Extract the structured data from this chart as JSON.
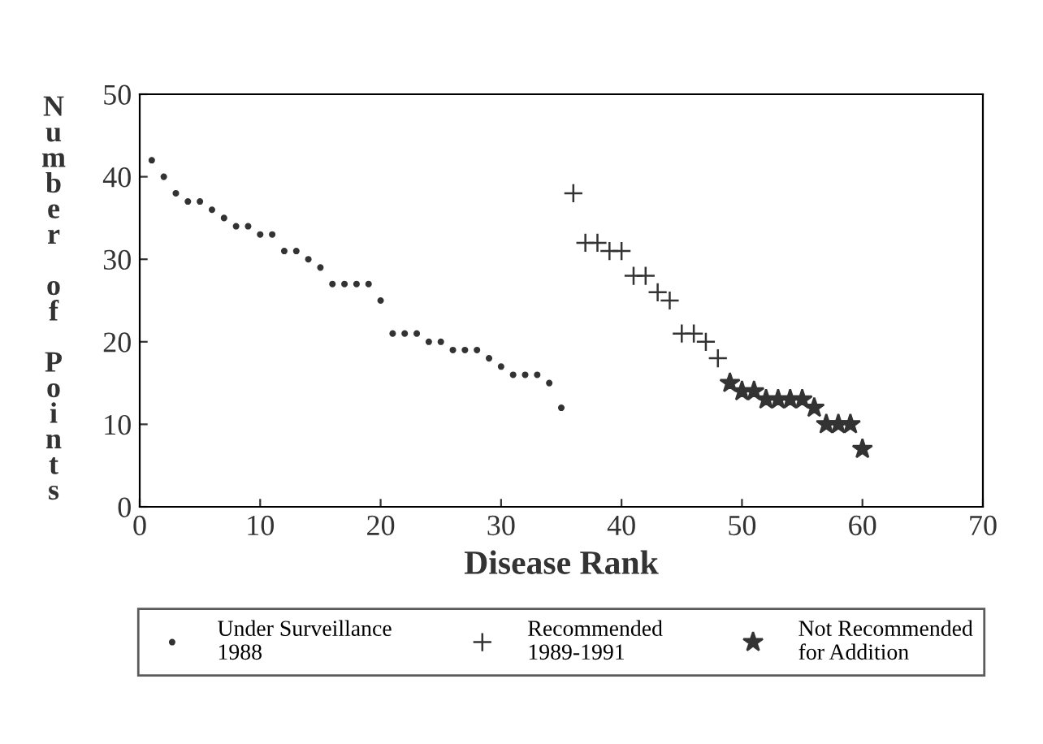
{
  "chart_data": {
    "type": "scatter",
    "xlabel": "Disease Rank",
    "ylabel": "Number of Points",
    "xlim": [
      0,
      70
    ],
    "xticks": [
      0,
      10,
      20,
      30,
      40,
      50,
      60,
      70
    ],
    "ylim": [
      0,
      50
    ],
    "yticks": [
      0,
      10,
      20,
      30,
      40,
      50
    ],
    "grid": false,
    "legend": "bottom",
    "series": [
      {
        "name": "Under Surveillance\n1988",
        "color": "#333333",
        "marker": "circle",
        "x": [
          1,
          2,
          3,
          4,
          5,
          6,
          7,
          8,
          9,
          10,
          11,
          12,
          13,
          14,
          15,
          16,
          17,
          18,
          19,
          20,
          21,
          22,
          23,
          24,
          25,
          26,
          27,
          28,
          29,
          30,
          31,
          32,
          33,
          34,
          35
        ],
        "values": [
          42,
          40,
          38,
          37,
          37,
          36,
          35,
          34,
          34,
          33,
          33,
          31,
          31,
          30,
          29,
          27,
          27,
          27,
          27,
          25,
          21,
          21,
          21,
          20,
          20,
          19,
          19,
          19,
          18,
          17,
          16,
          16,
          16,
          15,
          12
        ]
      },
      {
        "name": "Recommended\n1989-1991",
        "color": "#333333",
        "marker": "cross",
        "x": [
          36,
          37,
          38,
          39,
          40,
          41,
          42,
          43,
          44,
          45,
          46,
          47,
          48
        ],
        "values": [
          38,
          32,
          32,
          31,
          31,
          28,
          28,
          26,
          25,
          21,
          21,
          20,
          18
        ]
      },
      {
        "name": "Not Recommended\nfor Addition",
        "color": "#333333",
        "marker": "star",
        "x": [
          49,
          50,
          51,
          52,
          53,
          54,
          55,
          56,
          57,
          58,
          59,
          60
        ],
        "values": [
          15,
          14,
          14,
          13,
          13,
          13,
          13,
          12,
          10,
          10,
          10,
          7
        ]
      }
    ]
  }
}
